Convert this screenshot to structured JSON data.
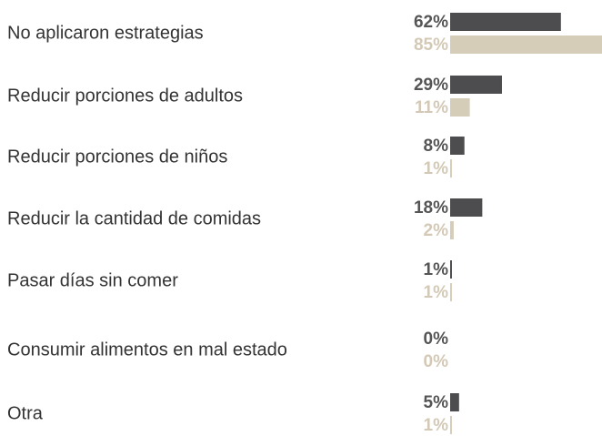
{
  "chart_data": {
    "type": "bar",
    "orientation": "horizontal",
    "categories": [
      "No aplicaron estrategias",
      "Reducir porciones de adultos",
      "Reducir porciones de niños",
      "Reducir la cantidad de comidas",
      "Pasar días sin comer",
      "Consumir alimentos en mal estado",
      "Otra"
    ],
    "series": [
      {
        "color": "#4d4d4f",
        "values": [
          62,
          29,
          8,
          18,
          1,
          0,
          5
        ],
        "value_labels": [
          "62%",
          "29%",
          "8%",
          "18%",
          "1%",
          "0%",
          "5%"
        ]
      },
      {
        "color": "#d6cdb9",
        "values": [
          85,
          11,
          1,
          2,
          1,
          0,
          1
        ],
        "value_labels": [
          "85%",
          "11%",
          "1%",
          "2%",
          "1%",
          "0%",
          "1%"
        ]
      }
    ]
  }
}
